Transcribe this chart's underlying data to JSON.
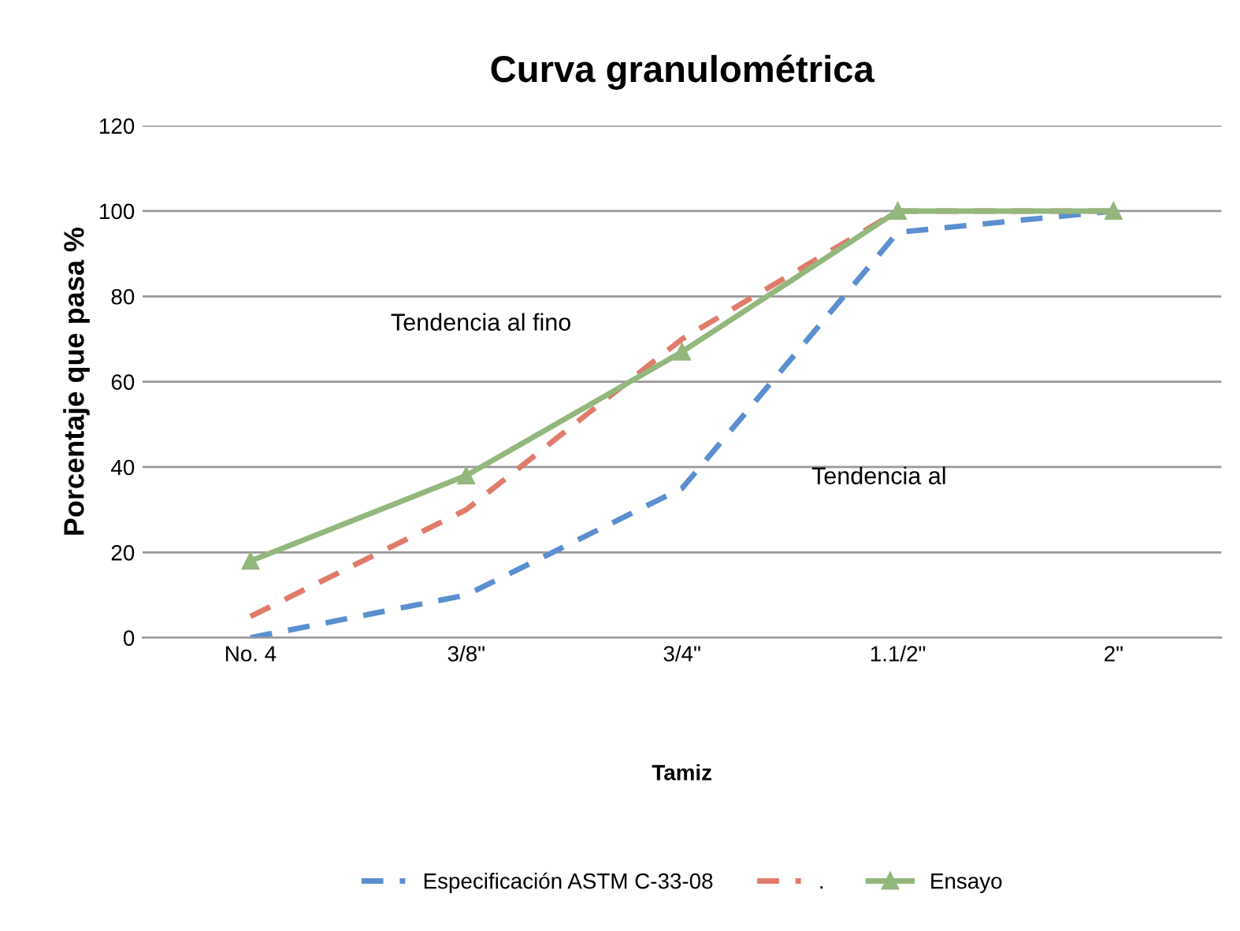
{
  "chart_data": {
    "type": "line",
    "title": "Curva granulométrica",
    "xlabel": "Tamiz",
    "ylabel": "Porcentaje que pasa %",
    "categories": [
      "No. 4",
      "3/8\"",
      "3/4\"",
      "1.1/2\"",
      "2\""
    ],
    "series": [
      {
        "name": "Especificación ASTM C-33-08",
        "color": "#5b8fcf",
        "values": [
          0,
          10,
          35,
          95,
          100
        ],
        "line_style": "dashed",
        "marker": "none"
      },
      {
        "name": ".",
        "color": "#e07b6c",
        "values": [
          5,
          30,
          70,
          100,
          100
        ],
        "line_style": "dashed",
        "marker": "none"
      },
      {
        "name": "Ensayo",
        "color": "#93b77d",
        "values": [
          18,
          38,
          67,
          100,
          100
        ],
        "line_style": "solid",
        "marker": "triangle"
      }
    ],
    "annotations": [
      "Tendencia al fino",
      "Tendencia al"
    ],
    "ylim": [
      0,
      120
    ],
    "yticks": [
      0,
      20,
      40,
      60,
      80,
      100,
      120
    ],
    "grid": "y",
    "legend": "bottom"
  }
}
